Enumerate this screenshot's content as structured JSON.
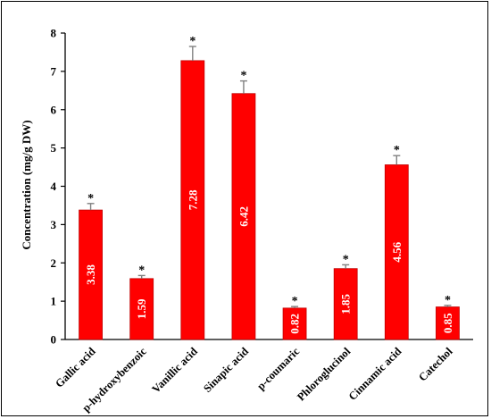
{
  "chart_data": {
    "type": "bar",
    "title": "",
    "xlabel": "",
    "ylabel": "Concentration (mg/g DW)",
    "categories": [
      "Gallic acid",
      "p-hydroxybenzoic",
      "Vanillic acid",
      "Sinapic acid",
      "p-coumaric",
      "Phloroglucinol",
      "Cinnamic acid",
      "Catechol"
    ],
    "values": [
      3.38,
      1.59,
      7.28,
      6.42,
      0.82,
      1.85,
      4.56,
      0.85
    ],
    "data_labels": [
      "3.38",
      "1.59",
      "7.28",
      "6.42",
      "0.82",
      "1.85",
      "4.56",
      "0.85"
    ],
    "error_upper": [
      3.55,
      1.67,
      7.65,
      6.75,
      0.86,
      1.95,
      4.8,
      0.89
    ],
    "significance_marks": [
      "*",
      "*",
      "*",
      "*",
      "*",
      "*",
      "*",
      "*"
    ],
    "ylim": [
      0,
      8
    ],
    "yticks": [
      "0",
      "1",
      "2",
      "3",
      "4",
      "5",
      "6",
      "7",
      "8"
    ],
    "grid": false,
    "legend": false,
    "bar_color": "#ff0000",
    "bar_edge_color": "#c00000",
    "error_bar_color": "#808080"
  }
}
